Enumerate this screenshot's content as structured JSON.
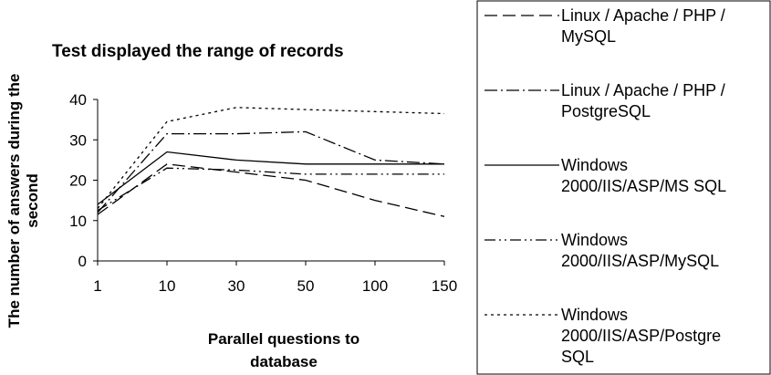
{
  "chart_data": {
    "type": "line",
    "title": "Test displayed the range of records",
    "xlabel": [
      "Parallel questions to",
      "database"
    ],
    "ylabel": [
      "The number of answers during the",
      "second"
    ],
    "categories": [
      "1",
      "10",
      "30",
      "50",
      "100",
      "150"
    ],
    "ylim": [
      0,
      40
    ],
    "yticks": [
      0,
      10,
      20,
      30,
      40
    ],
    "grid": false,
    "legend_position": "right",
    "series": [
      {
        "name": [
          "Linux / Apache / PHP /",
          "MySQL"
        ],
        "dash": "dashed",
        "values": [
          11.5,
          24,
          22,
          20,
          15,
          11
        ]
      },
      {
        "name": [
          "Linux / Apache / PHP /",
          "PostgreSQL"
        ],
        "dash": "dash-dot",
        "values": [
          12,
          31.5,
          31.5,
          32,
          25,
          24
        ]
      },
      {
        "name": [
          "Windows",
          "2000/IIS/ASP/MS SQL"
        ],
        "dash": "solid",
        "values": [
          14,
          27,
          25,
          24,
          24,
          24
        ]
      },
      {
        "name": [
          "Windows",
          "2000/IIS/ASP/MySQL"
        ],
        "dash": "dash-dot-dot",
        "values": [
          12.5,
          23,
          22.5,
          21.5,
          21.5,
          21.5
        ]
      },
      {
        "name": [
          "Windows",
          "2000/IIS/ASP/Postgre",
          "SQL"
        ],
        "dash": "dotted",
        "values": [
          13,
          34.5,
          38,
          37.5,
          37,
          36.5
        ]
      }
    ]
  }
}
